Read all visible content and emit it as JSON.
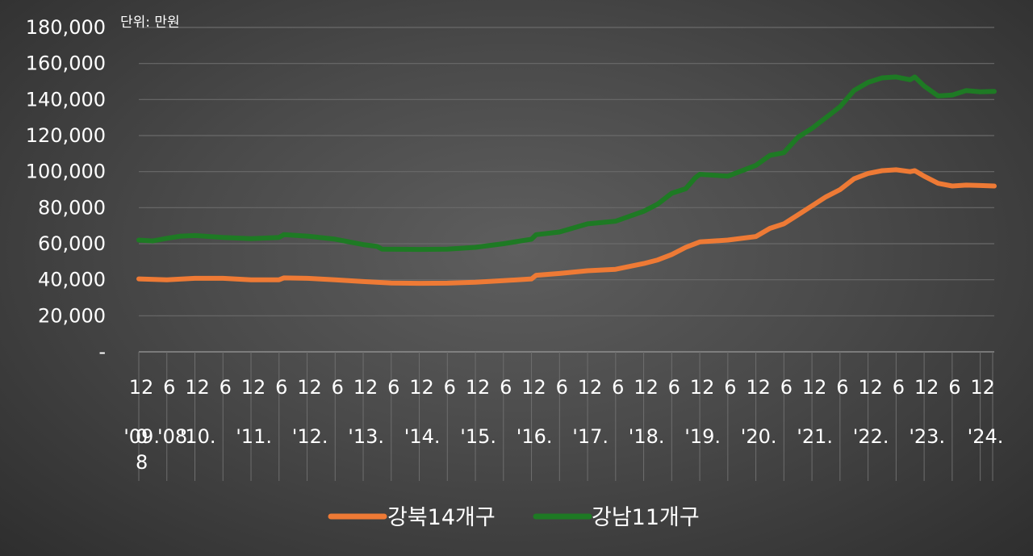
{
  "chart_data": {
    "type": "line",
    "unit_label": "단위: 만원",
    "ylim": [
      0,
      180000
    ],
    "yticks": [
      "-",
      "20,000",
      "40,000",
      "60,000",
      "80,000",
      "100,000",
      "120,000",
      "140,000",
      "160,000",
      "180,000"
    ],
    "x_month_labels": [
      "12",
      "6",
      "12",
      "6",
      "12",
      "6",
      "12",
      "6",
      "12",
      "6",
      "12",
      "6",
      "12",
      "6",
      "12",
      "6",
      "12",
      "6",
      "12",
      "6",
      "12",
      "6",
      "12",
      "6",
      "12",
      "6",
      "12",
      "6",
      "12",
      "6",
      "12"
    ],
    "x_year_labels": [
      "0 '08.",
      "'09.",
      "'10.",
      "'11.",
      "'12.",
      "'13.",
      "'14.",
      "'15.",
      "'16.",
      "'17.",
      "'18.",
      "'19.",
      "'20.",
      "'21.",
      "'22.",
      "'23.",
      "'24."
    ],
    "x_range": [
      "2008-12",
      "2024-03"
    ],
    "grid": true,
    "legend_position": "bottom",
    "series": [
      {
        "name": "강북14개구",
        "color": "#ee7a35",
        "points": [
          [
            "2008-12",
            40500
          ],
          [
            "2009-06",
            40000
          ],
          [
            "2009-12",
            40800
          ],
          [
            "2010-06",
            40800
          ],
          [
            "2010-12",
            40000
          ],
          [
            "2011-06",
            40000
          ],
          [
            "2011-07",
            41000
          ],
          [
            "2011-12",
            40800
          ],
          [
            "2012-06",
            40000
          ],
          [
            "2012-12",
            39000
          ],
          [
            "2013-06",
            38200
          ],
          [
            "2013-12",
            38000
          ],
          [
            "2014-06",
            38100
          ],
          [
            "2014-12",
            38600
          ],
          [
            "2015-06",
            39500
          ],
          [
            "2015-12",
            40500
          ],
          [
            "2016-01",
            42500
          ],
          [
            "2016-06",
            43500
          ],
          [
            "2016-12",
            45000
          ],
          [
            "2017-06",
            45800
          ],
          [
            "2017-12",
            49000
          ],
          [
            "2018-03",
            51000
          ],
          [
            "2018-06",
            54000
          ],
          [
            "2018-09",
            58000
          ],
          [
            "2018-12",
            61000
          ],
          [
            "2019-06",
            62000
          ],
          [
            "2019-12",
            64000
          ],
          [
            "2020-03",
            68500
          ],
          [
            "2020-06",
            71000
          ],
          [
            "2020-09",
            76000
          ],
          [
            "2020-12",
            81000
          ],
          [
            "2021-03",
            86000
          ],
          [
            "2021-06",
            90000
          ],
          [
            "2021-09",
            96000
          ],
          [
            "2021-12",
            99000
          ],
          [
            "2022-03",
            100500
          ],
          [
            "2022-06",
            101000
          ],
          [
            "2022-09",
            100000
          ],
          [
            "2022-10",
            100500
          ],
          [
            "2022-12",
            97500
          ],
          [
            "2023-03",
            93500
          ],
          [
            "2023-06",
            92000
          ],
          [
            "2023-09",
            92500
          ],
          [
            "2023-12",
            92300
          ],
          [
            "2024-03",
            92000
          ]
        ]
      },
      {
        "name": "강남11개구",
        "color": "#1e7a24",
        "points": [
          [
            "2008-12",
            62000
          ],
          [
            "2009-03",
            61500
          ],
          [
            "2009-06",
            63000
          ],
          [
            "2009-09",
            64200
          ],
          [
            "2009-12",
            64500
          ],
          [
            "2010-06",
            63500
          ],
          [
            "2010-12",
            62800
          ],
          [
            "2011-06",
            63500
          ],
          [
            "2011-07",
            65000
          ],
          [
            "2011-12",
            64200
          ],
          [
            "2012-06",
            62500
          ],
          [
            "2012-12",
            59500
          ],
          [
            "2013-03",
            58500
          ],
          [
            "2013-04",
            57000
          ],
          [
            "2013-12",
            56800
          ],
          [
            "2014-06",
            57000
          ],
          [
            "2014-12",
            58000
          ],
          [
            "2015-06",
            60000
          ],
          [
            "2015-12",
            62500
          ],
          [
            "2016-01",
            65000
          ],
          [
            "2016-06",
            66500
          ],
          [
            "2016-12",
            71000
          ],
          [
            "2017-06",
            72500
          ],
          [
            "2017-12",
            78000
          ],
          [
            "2018-03",
            82000
          ],
          [
            "2018-06",
            88000
          ],
          [
            "2018-09",
            90500
          ],
          [
            "2018-11",
            96500
          ],
          [
            "2018-12",
            98500
          ],
          [
            "2019-06",
            97500
          ],
          [
            "2019-12",
            103500
          ],
          [
            "2020-03",
            109000
          ],
          [
            "2020-06",
            110500
          ],
          [
            "2020-09",
            119000
          ],
          [
            "2020-12",
            124000
          ],
          [
            "2021-03",
            130000
          ],
          [
            "2021-06",
            136000
          ],
          [
            "2021-09",
            145000
          ],
          [
            "2021-12",
            149500
          ],
          [
            "2022-03",
            152000
          ],
          [
            "2022-06",
            152500
          ],
          [
            "2022-09",
            151000
          ],
          [
            "2022-10",
            152500
          ],
          [
            "2022-12",
            147500
          ],
          [
            "2023-03",
            142000
          ],
          [
            "2023-06",
            142500
          ],
          [
            "2023-09",
            145000
          ],
          [
            "2023-12",
            144300
          ],
          [
            "2024-03",
            144500
          ]
        ]
      }
    ]
  }
}
